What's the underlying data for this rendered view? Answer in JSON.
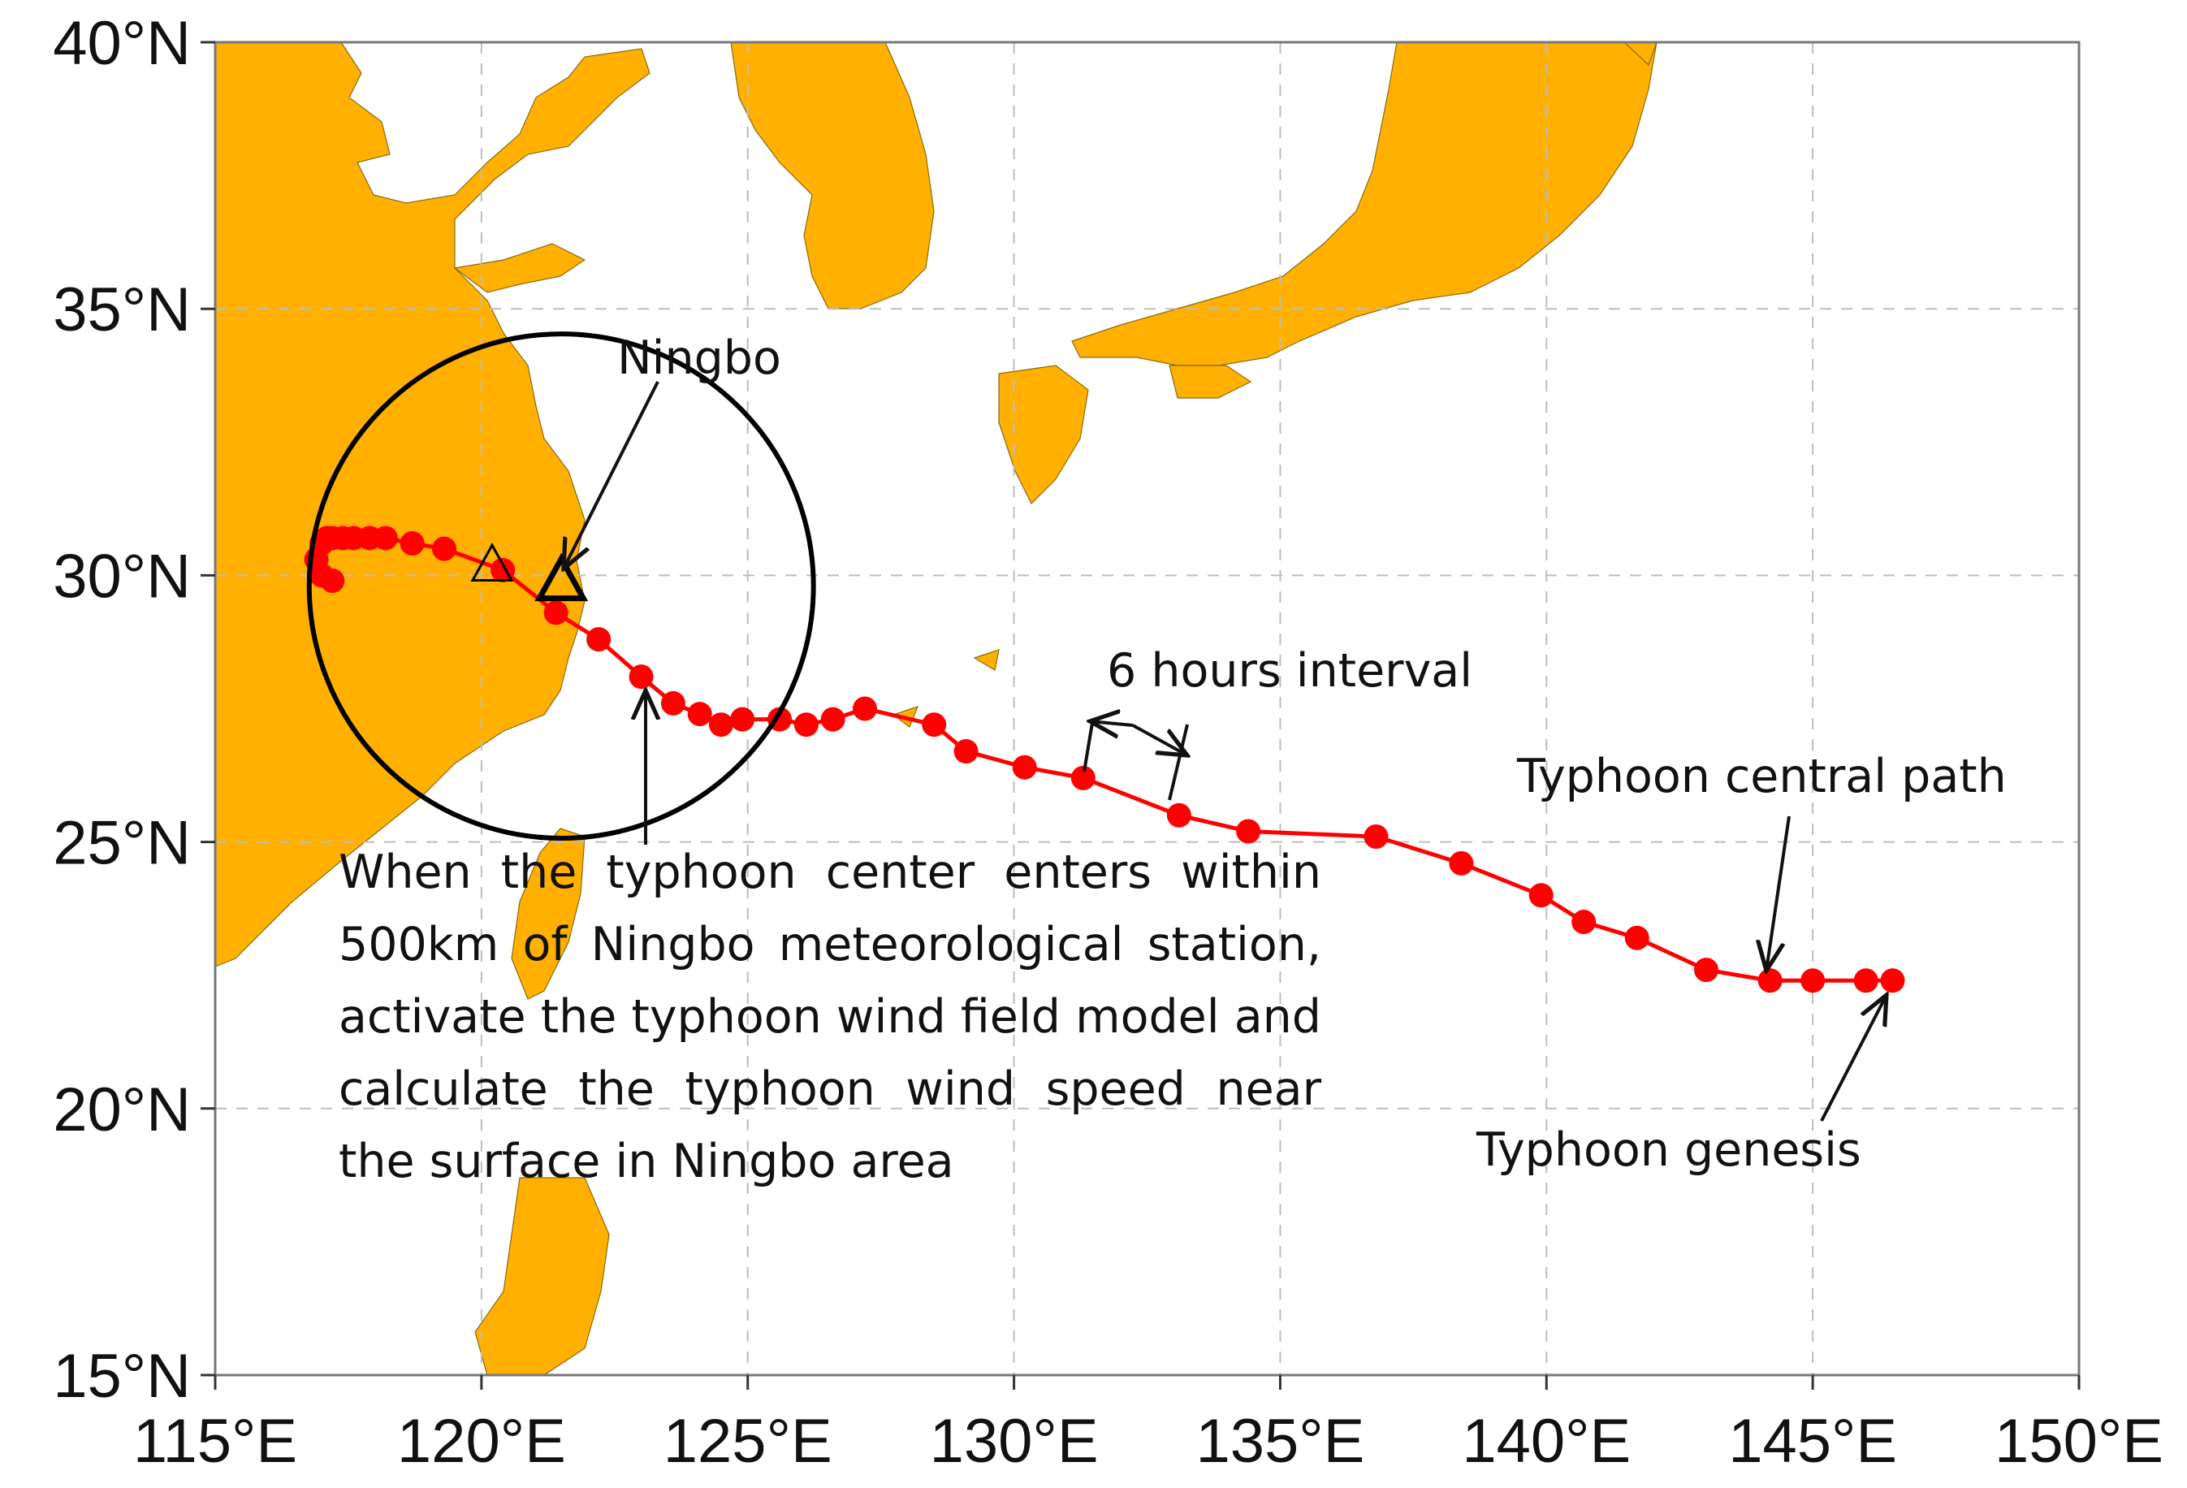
{
  "map": {
    "type": "typhoon-track-map",
    "lon_range": [
      115,
      150
    ],
    "lat_range": [
      15,
      40
    ],
    "grid": "dashed",
    "land_color": "#FFB000",
    "sea_color": "#FFFFFF",
    "track_color": "#FF0000",
    "lon_labels": [
      "115°E",
      "120°E",
      "125°E",
      "130°E",
      "135°E",
      "140°E",
      "145°E",
      "150°E"
    ],
    "lat_labels": [
      "40°N",
      "35°N",
      "30°N",
      "25°N",
      "20°N",
      "15°N"
    ]
  },
  "chart_data": {
    "type": "scatter",
    "xlabel": "",
    "ylabel": "",
    "xlim": [
      115,
      150
    ],
    "ylim": [
      15,
      40
    ],
    "series": [
      {
        "name": "Typhoon central path",
        "points": [
          [
            146.5,
            22.4
          ],
          [
            146.0,
            22.4
          ],
          [
            145.0,
            22.4
          ],
          [
            144.2,
            22.4
          ],
          [
            143.0,
            22.6
          ],
          [
            141.7,
            23.2
          ],
          [
            140.7,
            23.5
          ],
          [
            139.9,
            24.0
          ],
          [
            138.4,
            24.6
          ],
          [
            136.8,
            25.1
          ],
          [
            134.4,
            25.2
          ],
          [
            133.1,
            25.5
          ],
          [
            131.3,
            26.2
          ],
          [
            130.2,
            26.4
          ],
          [
            129.1,
            26.7
          ],
          [
            128.5,
            27.2
          ],
          [
            127.2,
            27.5
          ],
          [
            126.6,
            27.3
          ],
          [
            126.1,
            27.2
          ],
          [
            125.6,
            27.3
          ],
          [
            124.9,
            27.3
          ],
          [
            124.5,
            27.2
          ],
          [
            124.1,
            27.4
          ],
          [
            123.6,
            27.6
          ],
          [
            123.0,
            28.1
          ],
          [
            122.2,
            28.8
          ],
          [
            121.4,
            29.3
          ],
          [
            120.4,
            30.1
          ],
          [
            119.3,
            30.5
          ],
          [
            118.7,
            30.6
          ],
          [
            118.2,
            30.7
          ],
          [
            117.9,
            30.7
          ],
          [
            117.6,
            30.7
          ],
          [
            117.4,
            30.7
          ],
          [
            117.2,
            30.7
          ],
          [
            117.1,
            30.7
          ],
          [
            117.0,
            30.6
          ],
          [
            116.9,
            30.3
          ],
          [
            117.0,
            30.0
          ],
          [
            117.2,
            29.9
          ]
        ]
      }
    ],
    "markers": [
      {
        "label": "Ningbo",
        "lon": 121.5,
        "lat": 29.9,
        "symbol": "triangle"
      },
      {
        "label": "",
        "lon": 120.2,
        "lat": 30.2,
        "symbol": "triangle"
      }
    ],
    "circle": {
      "center_lon": 121.5,
      "center_lat": 29.8,
      "radius_km": 500
    }
  },
  "annotations": {
    "ningbo": "Ningbo",
    "interval": "6 hours interval",
    "path": "Typhoon central path",
    "genesis": "Typhoon genesis",
    "note": "When the typhoon center enters within 500km of Ningbo meteorological station, activate the typhoon wind field model and calculate the typhoon wind speed near the surface in Ningbo area"
  }
}
